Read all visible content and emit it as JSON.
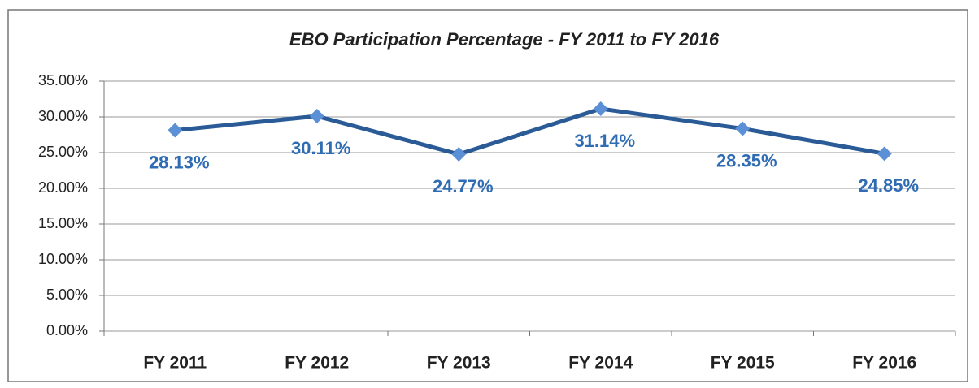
{
  "chart_data": {
    "type": "line",
    "title": "EBO Participation Percentage  - FY 2011 to FY 2016",
    "categories": [
      "FY 2011",
      "FY 2012",
      "FY 2013",
      "FY 2014",
      "FY 2015",
      "FY 2016"
    ],
    "values": [
      28.13,
      30.11,
      24.77,
      31.14,
      28.35,
      24.85
    ],
    "value_labels": [
      "28.13%",
      "30.11%",
      "24.77%",
      "31.14%",
      "28.35%",
      "24.85%"
    ],
    "color": "#2a5b97",
    "marker_color": "#5b8fd6",
    "label_color": "#2f6cb3",
    "ylim": [
      0,
      35
    ],
    "yticks": [
      {
        "value": 0,
        "label": "0.00%"
      },
      {
        "value": 5,
        "label": "5.00%"
      },
      {
        "value": 10,
        "label": "10.00%"
      },
      {
        "value": 15,
        "label": "15.00%"
      },
      {
        "value": 20,
        "label": "20.00%"
      },
      {
        "value": 25,
        "label": "25.00%"
      },
      {
        "value": 30,
        "label": "30.00%"
      },
      {
        "value": 35,
        "label": "35.00%"
      }
    ],
    "grid": true
  }
}
